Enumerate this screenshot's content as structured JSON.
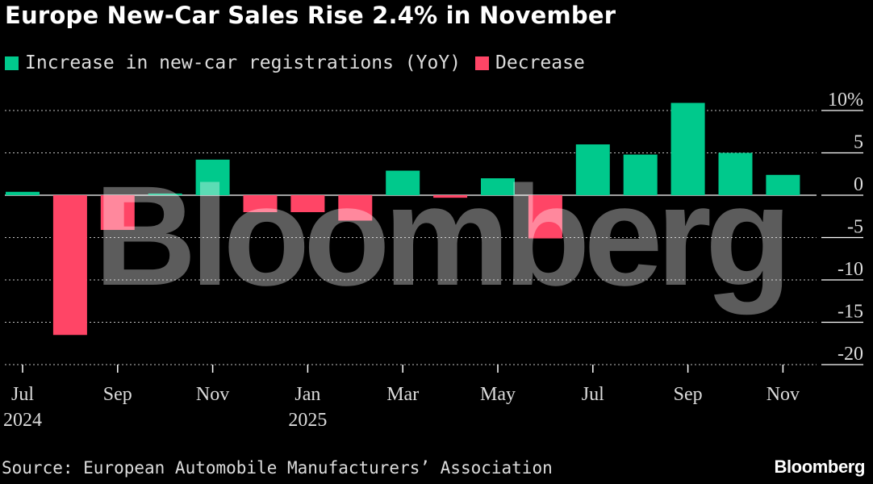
{
  "colors": {
    "background": "#000000",
    "increase": "#00c98c",
    "decrease": "#ff4566",
    "grid": "#ffffff",
    "text": "#dcdcdc"
  },
  "chart_data": {
    "type": "bar",
    "title": "Europe New-Car Sales Rise 2.4% in November",
    "legend": [
      {
        "label": "Increase in new-car registrations (YoY)",
        "color": "#00c98c"
      },
      {
        "label": "Decrease",
        "color": "#ff4566"
      }
    ],
    "legend_position": "top-left",
    "categories": [
      "Jul 2024",
      "Aug 2024",
      "Sep 2024",
      "Oct 2024",
      "Nov 2024",
      "Dec 2024",
      "Jan 2025",
      "Feb 2025",
      "Mar 2025",
      "Apr 2025",
      "May 2025",
      "Jun 2025",
      "Jul 2025",
      "Aug 2025",
      "Sep 2025",
      "Oct 2025",
      "Nov 2025"
    ],
    "values": [
      0.4,
      -16.5,
      -4.1,
      0.2,
      4.2,
      -2.0,
      -2.0,
      -3.0,
      2.9,
      -0.3,
      2.0,
      -5.1,
      6.0,
      4.8,
      10.9,
      5.0,
      2.4
    ],
    "x_tick_labels": [
      {
        "index": 0,
        "label": "Jul",
        "sublabel": "2024"
      },
      {
        "index": 2,
        "label": "Sep",
        "sublabel": ""
      },
      {
        "index": 4,
        "label": "Nov",
        "sublabel": ""
      },
      {
        "index": 6,
        "label": "Jan",
        "sublabel": "2025"
      },
      {
        "index": 8,
        "label": "Mar",
        "sublabel": ""
      },
      {
        "index": 10,
        "label": "May",
        "sublabel": ""
      },
      {
        "index": 12,
        "label": "Jul",
        "sublabel": ""
      },
      {
        "index": 14,
        "label": "Sep",
        "sublabel": ""
      },
      {
        "index": 16,
        "label": "Nov",
        "sublabel": ""
      }
    ],
    "y_ticks": [
      {
        "value": 10,
        "label": "10%"
      },
      {
        "value": 5,
        "label": "5"
      },
      {
        "value": 0,
        "label": "0"
      },
      {
        "value": -5,
        "label": "-5"
      },
      {
        "value": -10,
        "label": "-10"
      },
      {
        "value": -15,
        "label": "-15"
      },
      {
        "value": -20,
        "label": "-20"
      }
    ],
    "ylim": [
      -20,
      10
    ],
    "ylabel": "",
    "xlabel": "",
    "grid": "horizontal-dashed",
    "y_axis_side": "right"
  },
  "source": "Source: European Automobile Manufacturers’ Association",
  "brand": "Bloomberg",
  "watermark": "Bloomberg"
}
